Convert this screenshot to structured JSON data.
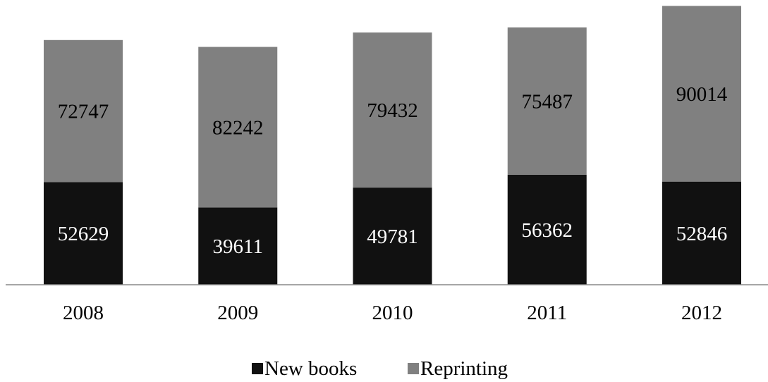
{
  "chart_data": {
    "type": "bar",
    "stacked": true,
    "categories": [
      "2008",
      "2009",
      "2010",
      "2011",
      "2012"
    ],
    "series": [
      {
        "name": "New books",
        "color": "#111111",
        "label_color": "#ffffff",
        "values": [
          52629,
          39611,
          49781,
          56362,
          52846
        ]
      },
      {
        "name": "Reprinting",
        "color": "#808080",
        "label_color": "#000000",
        "values": [
          72747,
          82242,
          79432,
          75487,
          90014
        ]
      }
    ],
    "ylim": [
      0,
      143000
    ],
    "grid": false,
    "legend_position": "bottom"
  }
}
